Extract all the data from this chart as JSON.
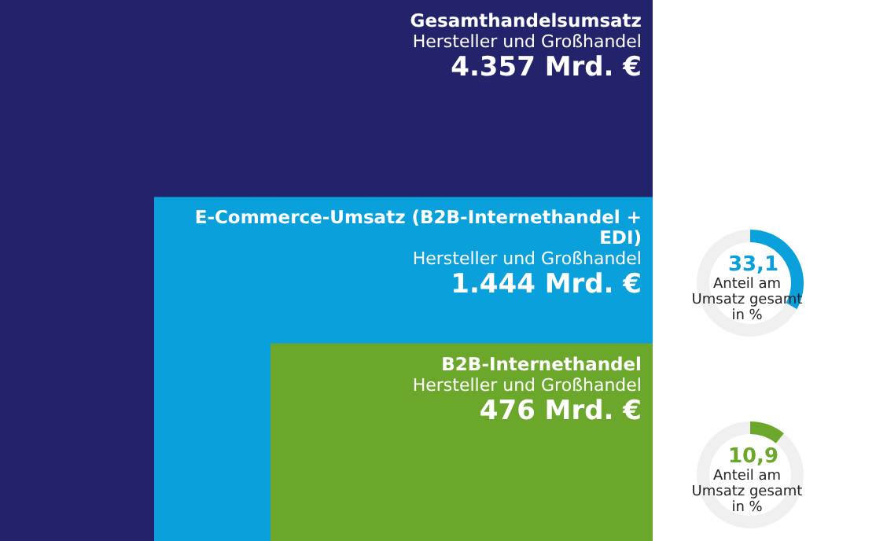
{
  "chart_data": [
    {
      "type": "other",
      "categories": [
        "Gesamthandelsumsatz",
        "E-Commerce-Umsatz (B2B-Internethandel + EDI)",
        "B2B-Internethandel"
      ],
      "values": [
        4357,
        1444,
        476
      ],
      "value_labels": [
        "4.357 Mrd. €",
        "1.444 Mrd. €",
        "476 Mrd. €"
      ],
      "annotations": [
        "Hersteller und Großhandel",
        "Hersteller und Großhandel",
        "Hersteller und Großhandel"
      ],
      "colors": [
        "#23236b",
        "#0aa0dc",
        "#6aa72b"
      ]
    },
    {
      "type": "donut",
      "title": "Anteil am Umsatz gesamt in %",
      "categories": [
        null,
        null
      ],
      "values": [
        33.1,
        66.9
      ],
      "value_labels": [
        "33,1",
        null
      ],
      "colors": [
        "#0aa0dc",
        "#f0f0f0"
      ]
    },
    {
      "type": "donut",
      "title": "Anteil am Umsatz gesamt in %",
      "categories": [
        null,
        null
      ],
      "values": [
        10.9,
        89.1
      ],
      "value_labels": [
        "10,9",
        null
      ],
      "colors": [
        "#6aa72b",
        "#f0f0f0"
      ]
    }
  ]
}
